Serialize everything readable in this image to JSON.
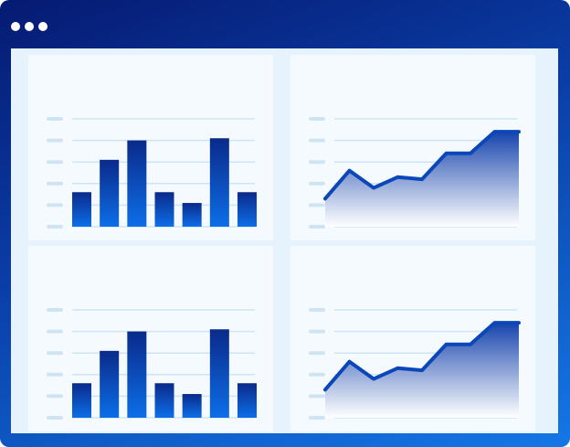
{
  "window": {
    "controls": [
      "dot",
      "dot",
      "dot"
    ],
    "control_color": "#ffffff",
    "frame_gradient": [
      "#061a72",
      "#0a3fa8",
      "#1477e6"
    ],
    "content_background": "#e6f3fd",
    "panel_background": "#f5faff"
  },
  "colors": {
    "bar_top": "#0a2a8a",
    "bar_bottom": "#0d6ee8",
    "line_stroke": "#0b47b8",
    "area_top": "#0b3aa8",
    "area_bottom": "#ffffff",
    "gridline": "#cfe4f2",
    "tick_marker": "#cfe4f2"
  },
  "chart_data": [
    {
      "type": "bar",
      "categories": [
        "",
        "",
        "",
        "",
        "",
        "",
        ""
      ],
      "values": [
        1.6,
        3.1,
        4.0,
        1.6,
        1.1,
        4.1,
        1.6
      ],
      "ylim": [
        0,
        5
      ],
      "grid": true,
      "title": "",
      "xlabel": "",
      "ylabel": ""
    },
    {
      "type": "area",
      "x": [
        0,
        1,
        2,
        3,
        4,
        5,
        6,
        7,
        8
      ],
      "values": [
        1.3,
        2.6,
        1.8,
        2.3,
        2.2,
        3.4,
        3.4,
        4.4,
        4.4
      ],
      "ylim": [
        0,
        5
      ],
      "grid": true,
      "title": "",
      "xlabel": "",
      "ylabel": ""
    },
    {
      "type": "bar",
      "categories": [
        "",
        "",
        "",
        "",
        "",
        "",
        ""
      ],
      "values": [
        1.6,
        3.1,
        4.0,
        1.6,
        1.1,
        4.1,
        1.6
      ],
      "ylim": [
        0,
        5
      ],
      "grid": true,
      "title": "",
      "xlabel": "",
      "ylabel": ""
    },
    {
      "type": "area",
      "x": [
        0,
        1,
        2,
        3,
        4,
        5,
        6,
        7,
        8
      ],
      "values": [
        1.3,
        2.6,
        1.8,
        2.3,
        2.2,
        3.4,
        3.4,
        4.4,
        4.4
      ],
      "ylim": [
        0,
        5
      ],
      "grid": true,
      "title": "",
      "xlabel": "",
      "ylabel": ""
    }
  ]
}
